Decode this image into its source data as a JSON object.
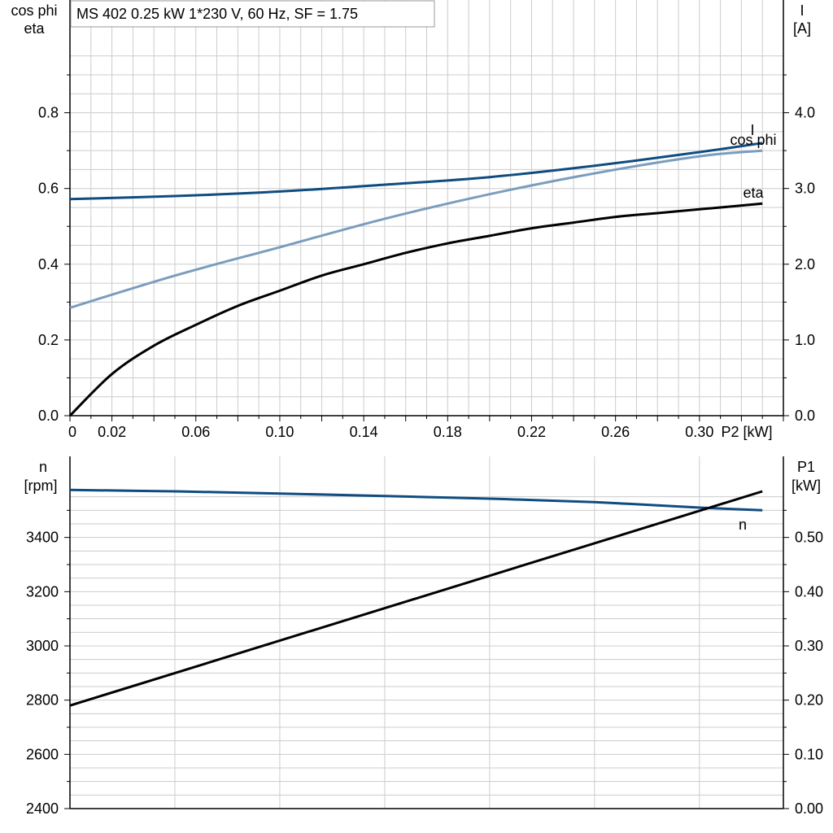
{
  "title": "MS 402   0.25 kW   1*230 V, 60 Hz, SF = 1.75",
  "colors": {
    "I": "#0f4c81",
    "cos_phi": "#7b9dbd",
    "eta": "#000000",
    "n": "#0f4c81",
    "P1": "#000000",
    "grid": "#cccccc"
  },
  "chart_data": [
    {
      "type": "line",
      "title": "MS 402   0.25 kW   1*230 V, 60 Hz, SF = 1.75",
      "xlabel": "P2 [kW]",
      "xlim": [
        0,
        0.34
      ],
      "xticks": [
        "0",
        "0.02",
        "0.06",
        "0.10",
        "0.14",
        "0.18",
        "0.22",
        "0.26",
        "0.30"
      ],
      "xtick_values": [
        0,
        0.02,
        0.06,
        0.1,
        0.14,
        0.18,
        0.22,
        0.26,
        0.3
      ],
      "ylabel_left": [
        "cos phi",
        "eta"
      ],
      "ylim_left": [
        0,
        1.0
      ],
      "yticks_left": [
        "0.0",
        "0.2",
        "0.4",
        "0.6",
        "0.8"
      ],
      "ylabel_right": [
        "I",
        "[A]"
      ],
      "ylim_right": [
        0,
        5.0
      ],
      "yticks_right": [
        "0.0",
        "1.0",
        "2.0",
        "3.0",
        "4.0"
      ],
      "grid": true,
      "series": [
        {
          "name": "I",
          "axis": "right",
          "x": [
            0,
            0.05,
            0.1,
            0.15,
            0.2,
            0.25,
            0.3,
            0.33
          ],
          "values": [
            2.86,
            2.9,
            2.96,
            3.05,
            3.15,
            3.3,
            3.48,
            3.6
          ]
        },
        {
          "name": "cos phi",
          "axis": "left",
          "x": [
            0,
            0.05,
            0.1,
            0.15,
            0.2,
            0.25,
            0.3,
            0.33
          ],
          "values": [
            0.285,
            0.37,
            0.445,
            0.52,
            0.585,
            0.64,
            0.685,
            0.7
          ]
        },
        {
          "name": "eta",
          "axis": "left",
          "x": [
            0,
            0.02,
            0.04,
            0.06,
            0.08,
            0.1,
            0.12,
            0.14,
            0.16,
            0.18,
            0.2,
            0.22,
            0.24,
            0.26,
            0.28,
            0.3,
            0.33
          ],
          "values": [
            0,
            0.11,
            0.185,
            0.24,
            0.29,
            0.33,
            0.37,
            0.4,
            0.43,
            0.455,
            0.475,
            0.495,
            0.51,
            0.525,
            0.535,
            0.545,
            0.56
          ]
        }
      ]
    },
    {
      "type": "line",
      "xlim": [
        0,
        0.34
      ],
      "ylabel_left": [
        "n",
        "[rpm]"
      ],
      "ylim_left": [
        2400,
        3600
      ],
      "yticks_left": [
        "2400",
        "2600",
        "2800",
        "3000",
        "3200",
        "3400"
      ],
      "ylabel_right": [
        "P1",
        "[kW]"
      ],
      "ylim_right": [
        0,
        0.6
      ],
      "yticks_right": [
        "0.00",
        "0.10",
        "0.20",
        "0.30",
        "0.40",
        "0.50"
      ],
      "grid": true,
      "series": [
        {
          "name": "n",
          "axis": "left",
          "x": [
            0,
            0.05,
            0.1,
            0.15,
            0.2,
            0.25,
            0.3,
            0.33
          ],
          "values": [
            3575,
            3570,
            3562,
            3553,
            3543,
            3530,
            3510,
            3500
          ]
        },
        {
          "name": "",
          "axis": "right",
          "x": [
            0,
            0.33
          ],
          "values": [
            0.19,
            0.585
          ]
        }
      ]
    }
  ]
}
